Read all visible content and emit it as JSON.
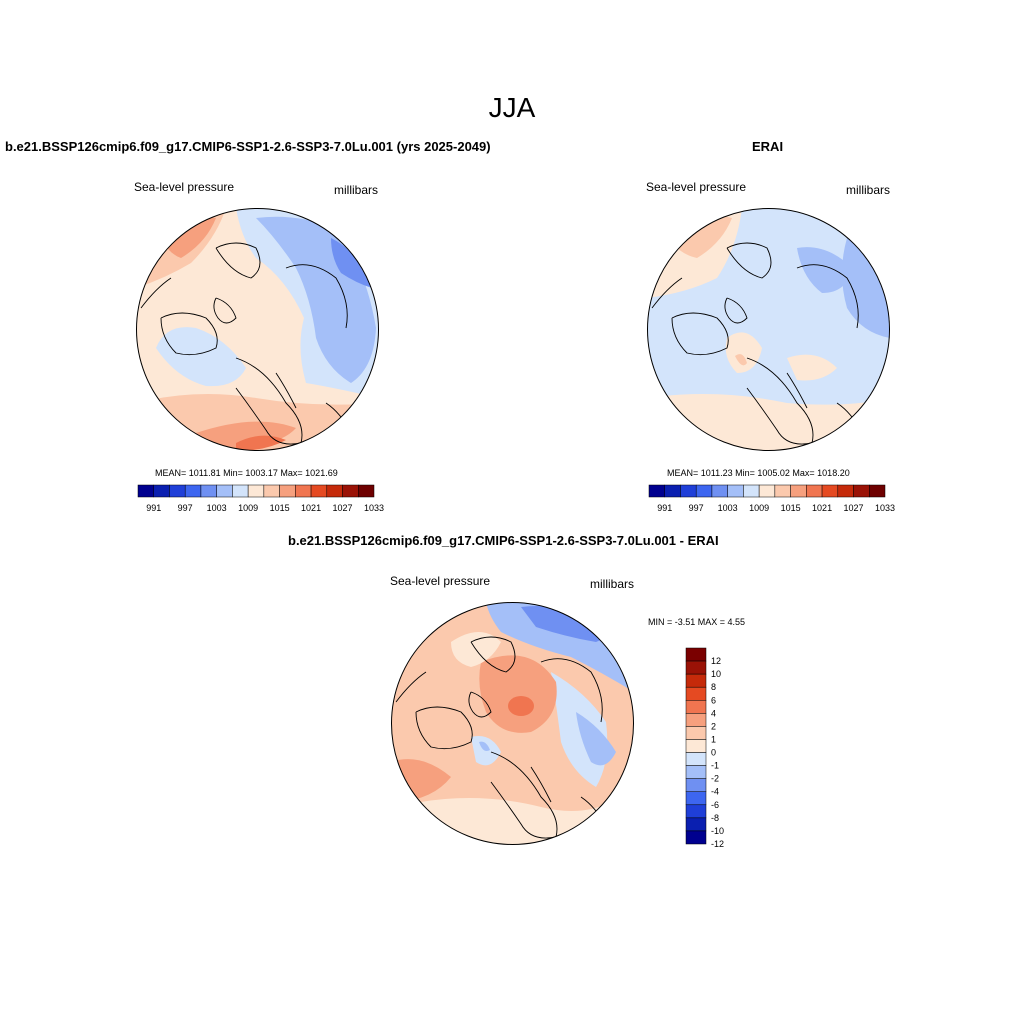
{
  "page": {
    "title": "JJA"
  },
  "panels": {
    "model": {
      "title": "b.e21.BSSP126cmip6.f09_g17.CMIP6-SSP1-2.6-SSP3-7.0Lu.001 (yrs 2025-2049)",
      "variable": "Sea-level pressure",
      "units": "millibars",
      "stats": "MEAN= 1011.81  Min= 1003.17  Max= 1021.69"
    },
    "obs": {
      "title": "ERAI",
      "variable": "Sea-level pressure",
      "units": "millibars",
      "stats": "MEAN= 1011.23  Min= 1005.02  Max= 1018.20"
    },
    "diff": {
      "title": "b.e21.BSSP126cmip6.f09_g17.CMIP6-SSP1-2.6-SSP3-7.0Lu.001 - ERAI",
      "variable": "Sea-level pressure",
      "units": "millibars",
      "stats": "MIN =  -3.51 MAX =   4.55"
    }
  },
  "colorbars": {
    "absolute": {
      "colors": [
        "#00008f",
        "#0a1fb0",
        "#1f3fd8",
        "#3d66f0",
        "#6f90f2",
        "#a4bff8",
        "#d3e4fb",
        "#fde8d6",
        "#fbc9ad",
        "#f6a07e",
        "#f07550",
        "#e54a22",
        "#c52a0a",
        "#9a1206",
        "#6e0000"
      ],
      "labels": [
        "991",
        "997",
        "1003",
        "1009",
        "1015",
        "1021",
        "1027",
        "1033"
      ]
    },
    "difference": {
      "colors": [
        "#00008f",
        "#0a1fb0",
        "#1f3fd8",
        "#3d66f0",
        "#6f90f2",
        "#a4bff8",
        "#d3e4fb",
        "#fde8d6",
        "#fbc9ad",
        "#f6a07e",
        "#f07550",
        "#e54a22",
        "#c52a0a",
        "#9a1206",
        "#7a0000"
      ],
      "labels": [
        "12",
        "10",
        "8",
        "6",
        "4",
        "2",
        "1",
        "0",
        "-1",
        "-2",
        "-4",
        "-6",
        "-8",
        "-10",
        "-12"
      ]
    }
  }
}
